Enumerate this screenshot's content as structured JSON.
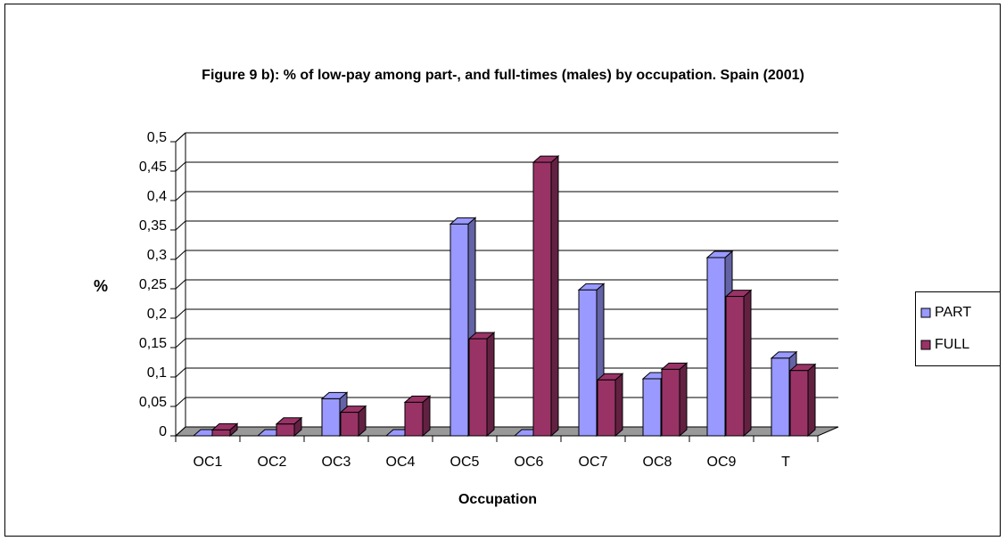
{
  "chart_data": {
    "type": "bar3d",
    "title": "Figure 9 b): % of low-pay among part-, and full-times (males) by occupation. Spain (2001)",
    "x_label": "Occupation",
    "y_label": "%",
    "categories": [
      "OC1",
      "OC2",
      "OC3",
      "OC4",
      "OC5",
      "OC6",
      "OC7",
      "OC8",
      "OC9",
      "T"
    ],
    "series": [
      {
        "name": "PART",
        "color": "#9999ff",
        "values": [
          0,
          0,
          0.063,
          0,
          0.36,
          0,
          0.248,
          0.097,
          0.303,
          0.132
        ]
      },
      {
        "name": "FULL",
        "color": "#993366",
        "values": [
          0.01,
          0.02,
          0.04,
          0.057,
          0.165,
          0.465,
          0.095,
          0.113,
          0.237,
          0.111
        ]
      }
    ],
    "ylim": [
      0,
      0.5
    ],
    "yticks": [
      0,
      {
        "value": 0.05,
        "label": "0,05"
      },
      {
        "value": 0.1,
        "label": "0,1"
      },
      {
        "value": 0.15,
        "label": "0,15"
      },
      {
        "value": 0.2,
        "label": "0,2"
      },
      {
        "value": 0.25,
        "label": "0,25"
      },
      {
        "value": 0.3,
        "label": "0,3"
      },
      {
        "value": 0.35,
        "label": "0,35"
      },
      {
        "value": 0.4,
        "label": "0,4"
      },
      {
        "value": 0.45,
        "label": "0,45"
      },
      {
        "value": 0.5,
        "label": "0,5"
      }
    ],
    "grid": true,
    "legend": "right"
  }
}
